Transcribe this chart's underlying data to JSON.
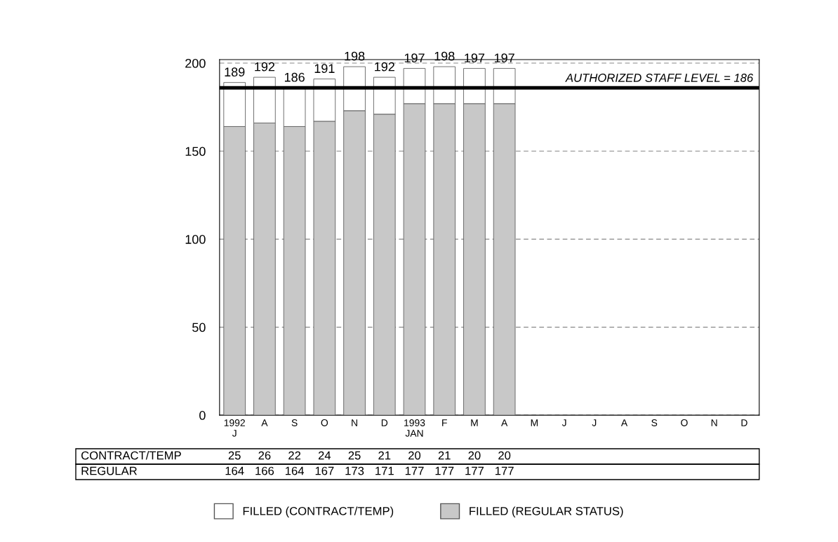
{
  "chart_data": {
    "type": "bar",
    "stacked": true,
    "categories": [
      "1992\nJ",
      "A",
      "S",
      "O",
      "N",
      "D",
      "1993\nJAN",
      "F",
      "M",
      "A",
      "M",
      "J",
      "J",
      "A",
      "S",
      "O",
      "N",
      "D"
    ],
    "series": [
      {
        "name": "FILLED (REGULAR STATUS)",
        "color": "#c8c8c8",
        "values": [
          164,
          166,
          164,
          167,
          173,
          171,
          177,
          177,
          177,
          177,
          null,
          null,
          null,
          null,
          null,
          null,
          null,
          null
        ]
      },
      {
        "name": "FILLED (CONTRACT/TEMP)",
        "color": "#ffffff",
        "values": [
          25,
          26,
          22,
          24,
          25,
          21,
          20,
          21,
          20,
          20,
          null,
          null,
          null,
          null,
          null,
          null,
          null,
          null
        ]
      }
    ],
    "totals": [
      "189",
      "192",
      "186",
      "191",
      "198",
      "192",
      "197",
      "198",
      "197",
      "197",
      null,
      null,
      null,
      null,
      null,
      null,
      null,
      null
    ],
    "data_labels": true,
    "annotations": [
      "CONTRACT/TEMP",
      "REGULAR"
    ],
    "ref_lines": [
      {
        "axis": "y",
        "value": 186,
        "label": "AUTHORIZED STAFF LEVEL = 186",
        "color": "#000000"
      }
    ],
    "ylim": [
      0,
      202
    ],
    "yticks": [
      0,
      50,
      100,
      150,
      200
    ],
    "grid": "y",
    "legend": "bottom"
  }
}
